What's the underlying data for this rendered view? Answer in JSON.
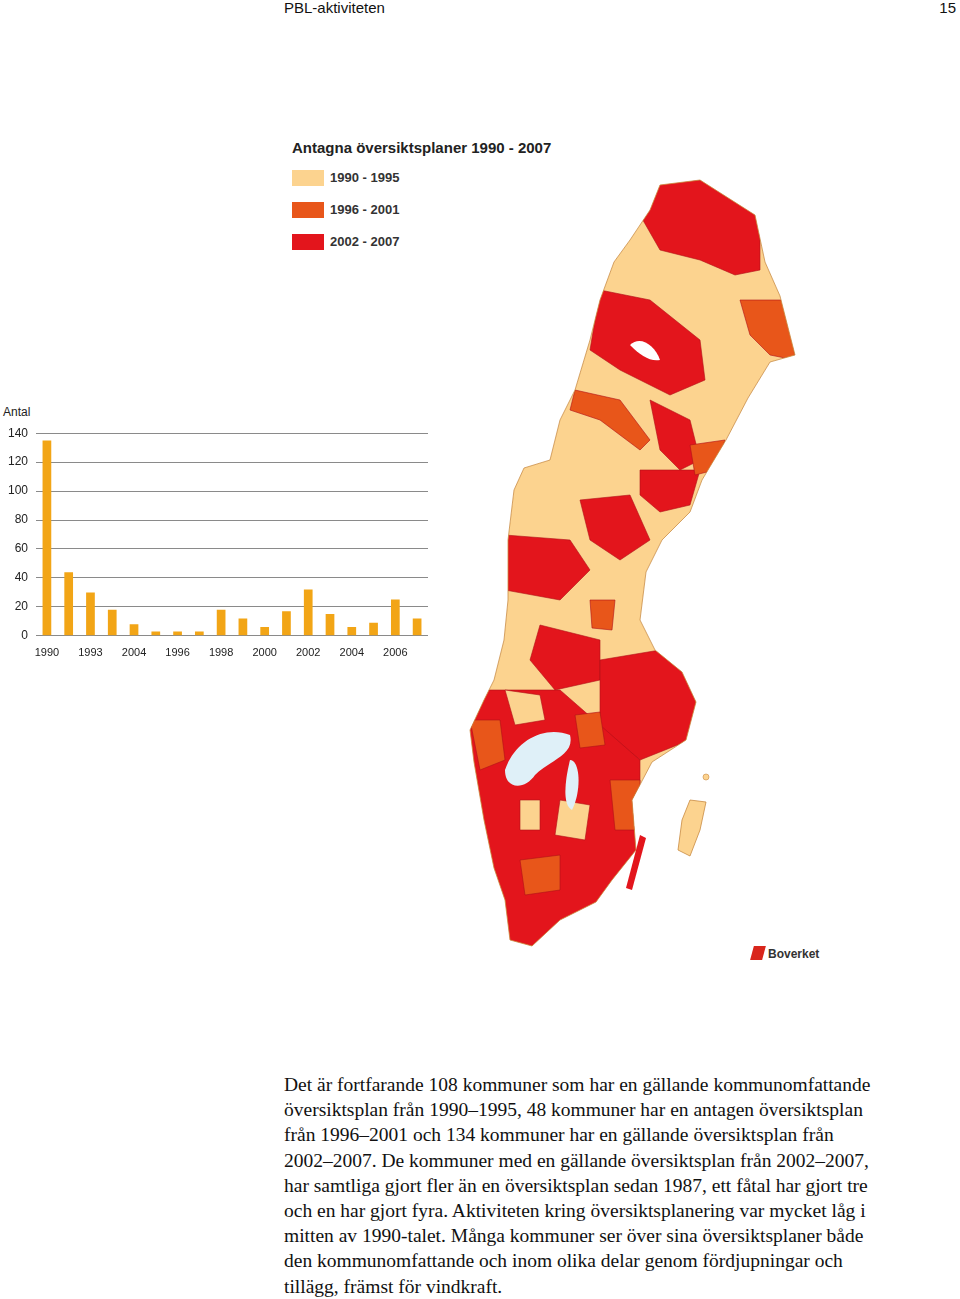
{
  "header": {
    "title": "PBL-aktiviteten",
    "page": "15"
  },
  "map": {
    "title": "Antagna översiktsplaner 1990 - 2007",
    "legend": [
      {
        "label": "1990 - 1995",
        "color": "#fcd38f"
      },
      {
        "label": "1996 - 2001",
        "color": "#e8561a"
      },
      {
        "label": "2002 - 2007",
        "color": "#e3151c"
      }
    ],
    "credit": "Boverket"
  },
  "chart_data": {
    "type": "bar",
    "ylabel": "Antal",
    "categories": [
      "1990",
      null,
      "1993",
      null,
      "2004",
      null,
      "1996",
      null,
      "1998",
      null,
      "2000",
      null,
      "2002",
      null,
      "2004",
      null,
      "2006",
      null
    ],
    "values": [
      135,
      44,
      30,
      18,
      8,
      3,
      3,
      3,
      18,
      12,
      6,
      17,
      32,
      15,
      6,
      9,
      25,
      12
    ],
    "color": "#f2a516",
    "ylim": [
      0,
      140
    ],
    "yticks": [
      0,
      20,
      40,
      60,
      80,
      100,
      120,
      140
    ],
    "grid": true
  },
  "body": {
    "paragraph_lines": [
      "Det är fortfarande 108 kommuner som har en gällande kommunomfattande",
      "översiktsplan från 1990–1995, 48 kommuner har en antagen översiktsplan",
      "från 1996–2001 och 134 kommuner har en gällande översiktsplan från",
      "2002–2007. De kommuner med en gällande översiktsplan från 2002–2007,",
      "har samtliga gjort fler än en översiktsplan sedan 1987, ett fåtal har gjort tre",
      "och en har gjort fyra. Aktiviteten kring översiktsplanering var mycket låg i",
      "mitten av 1990-talet. Många kommuner ser över sina översiktsplaner både",
      "den kommunomfattande och inom olika delar genom fördjupningar och",
      "tillägg, främst för vindkraft."
    ]
  }
}
